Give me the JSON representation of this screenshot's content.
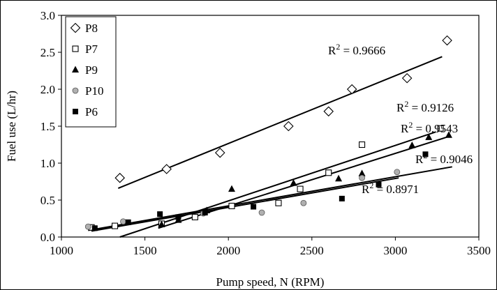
{
  "chart_data": {
    "type": "scatter",
    "title": "",
    "xlabel": "Pump speed, N (RPM)",
    "ylabel": "Fuel use (L/hr)",
    "xlim": [
      1000,
      3500
    ],
    "ylim": [
      0,
      3.0
    ],
    "xticks": [
      1000,
      1500,
      2000,
      2500,
      3000,
      3500
    ],
    "xtick_labels": [
      "1000",
      "1500",
      "2000",
      "2500",
      "3000",
      "3500"
    ],
    "yticks": [
      0,
      0.5,
      1.0,
      1.5,
      2.0,
      2.5,
      3.0
    ],
    "ytick_labels": [
      "0.0",
      "0.5",
      "1.0",
      "1.5",
      "2.0",
      "2.5",
      "3.0"
    ],
    "grid": false,
    "legend_position": "top-left",
    "series": [
      {
        "name": "P8",
        "marker": "diamond-open",
        "points": [
          [
            1350,
            0.8
          ],
          [
            1630,
            0.92
          ],
          [
            1950,
            1.14
          ],
          [
            2360,
            1.5
          ],
          [
            2600,
            1.7
          ],
          [
            2740,
            2.0
          ],
          [
            3070,
            2.15
          ],
          [
            3310,
            2.66
          ]
        ],
        "trend": [
          [
            1340,
            0.66
          ],
          [
            3280,
            2.44
          ]
        ],
        "r2_label": "R",
        "r2_sup": "2",
        "r2_value": " = 0.9666"
      },
      {
        "name": "P7",
        "marker": "square-open",
        "points": [
          [
            1180,
            0.13
          ],
          [
            1320,
            0.15
          ],
          [
            1600,
            0.18
          ],
          [
            1800,
            0.27
          ],
          [
            2020,
            0.42
          ],
          [
            2300,
            0.46
          ],
          [
            2430,
            0.65
          ],
          [
            2600,
            0.87
          ],
          [
            2800,
            1.25
          ],
          [
            3270,
            1.47
          ]
        ],
        "trend": [
          [
            1350,
            0.0
          ],
          [
            3240,
            1.42
          ]
        ],
        "r2_label": "R",
        "r2_sup": "2",
        "r2_value": " = 0.9126"
      },
      {
        "name": "P9",
        "marker": "triangle-filled",
        "points": [
          [
            1600,
            0.17
          ],
          [
            1700,
            0.23
          ],
          [
            1870,
            0.36
          ],
          [
            2020,
            0.65
          ],
          [
            2390,
            0.73
          ],
          [
            2660,
            0.79
          ],
          [
            2800,
            0.86
          ],
          [
            3100,
            1.24
          ],
          [
            3200,
            1.35
          ],
          [
            3320,
            1.38
          ]
        ],
        "trend": [
          [
            1580,
            0.12
          ],
          [
            3320,
            1.36
          ]
        ],
        "r2_label": "R",
        "r2_sup": "2",
        "r2_value": " = 0.9543"
      },
      {
        "name": "P10",
        "marker": "circle-filled-gray",
        "points": [
          [
            1160,
            0.14
          ],
          [
            1370,
            0.21
          ],
          [
            1850,
            0.32
          ],
          [
            2200,
            0.33
          ],
          [
            2450,
            0.46
          ],
          [
            2800,
            0.8
          ],
          [
            3010,
            0.88
          ]
        ],
        "trend": [
          [
            1160,
            0.09
          ],
          [
            3340,
            0.95
          ]
        ],
        "r2_label": "R",
        "r2_sup": "2",
        "r2_value": " = 0.9046"
      },
      {
        "name": "P6",
        "marker": "square-filled",
        "points": [
          [
            1200,
            0.12
          ],
          [
            1400,
            0.2
          ],
          [
            1590,
            0.31
          ],
          [
            1700,
            0.27
          ],
          [
            1860,
            0.33
          ],
          [
            2150,
            0.41
          ],
          [
            2680,
            0.52
          ],
          [
            2900,
            0.71
          ],
          [
            3180,
            1.12
          ]
        ],
        "trend": [
          [
            1180,
            0.08
          ],
          [
            3020,
            0.8
          ]
        ],
        "r2_label": "R",
        "r2_sup": "2",
        "r2_value": " = 0.8971"
      }
    ]
  }
}
